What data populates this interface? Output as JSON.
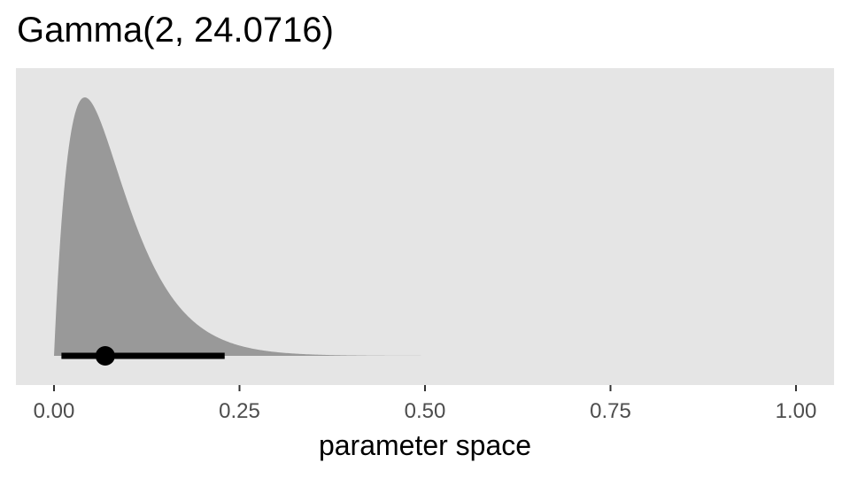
{
  "chart_data": {
    "type": "area",
    "title": "Gamma(2, 24.0716)",
    "xlabel": "parameter space",
    "ylabel": "",
    "distribution": {
      "family": "Gamma",
      "shape": 2,
      "rate": 24.0716
    },
    "xlim": [
      0,
      1
    ],
    "x_ticks": [
      0,
      0.25,
      0.5,
      0.75,
      1.0
    ],
    "x_tick_labels": [
      "0.00",
      "0.25",
      "0.50",
      "0.75",
      "1.00"
    ],
    "density_range": [
      0,
      0.5
    ],
    "point_estimate": 0.069,
    "interval": [
      0.01,
      0.23
    ],
    "grid": false,
    "legend": "none",
    "colors": {
      "panel": "#e5e5e5",
      "density": "#999999",
      "interval": "#000000",
      "tick": "#333333",
      "tick_label": "#4d4d4d"
    }
  }
}
